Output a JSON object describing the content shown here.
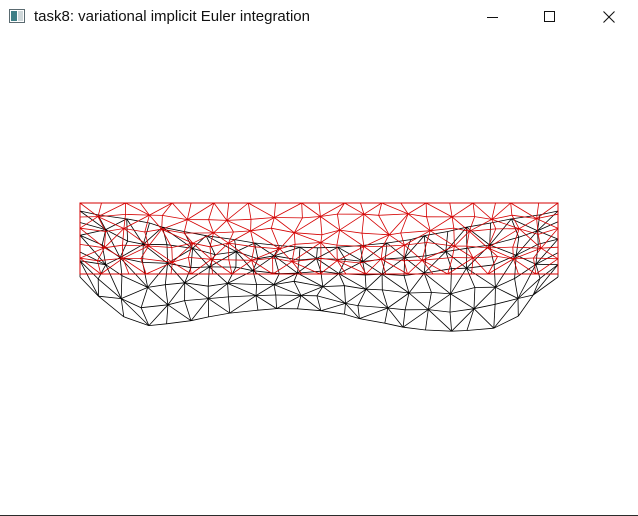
{
  "window": {
    "title": "task8: variational implicit Euler integration"
  },
  "controls": {
    "minimize": "minimize-icon",
    "maximize": "maximize-icon",
    "close": "close-icon"
  },
  "scene": {
    "rest_mesh_color": "#d40000",
    "deformed_mesh_color": "#000000",
    "background": "#ffffff"
  }
}
